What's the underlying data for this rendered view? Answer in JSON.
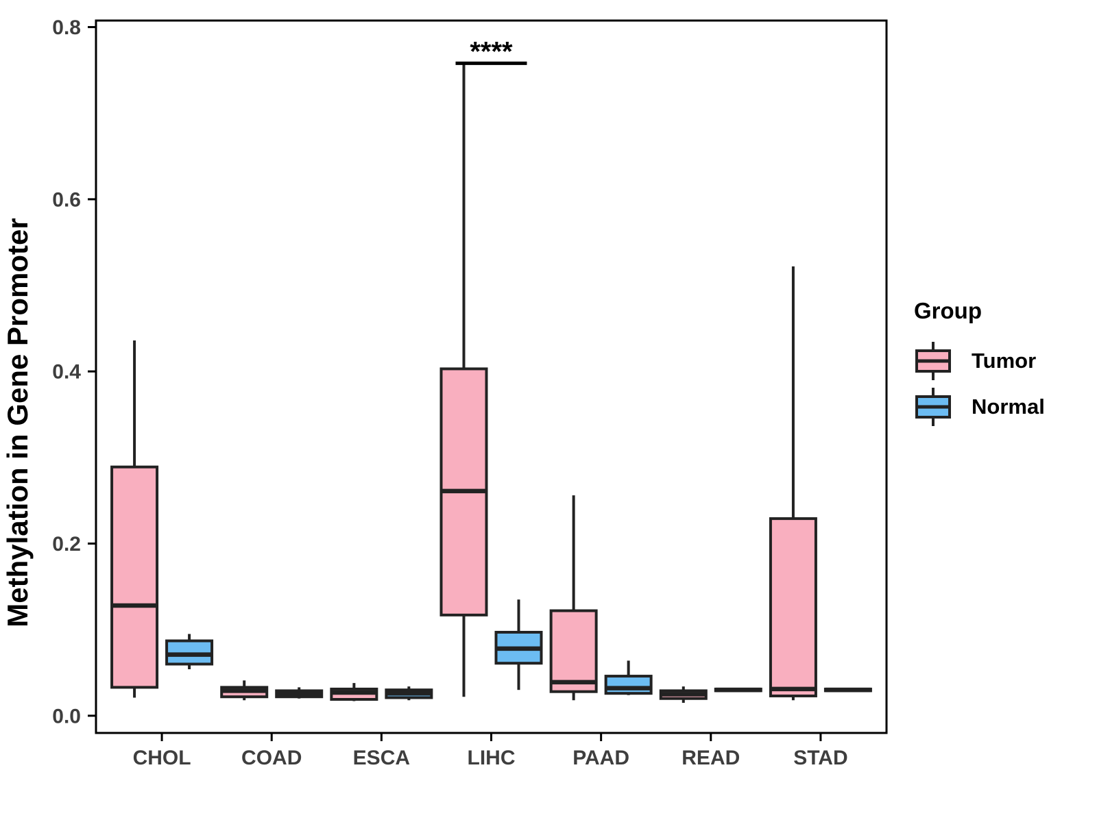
{
  "style": {
    "background": "#FFFFFF",
    "axis_color": "#000000",
    "box_border": "#222222",
    "tick_label_color": "#3E3E3E"
  },
  "legend": {
    "title": "Group"
  },
  "chart_data": {
    "type": "boxplot",
    "title": "",
    "xlabel": "",
    "ylabel": "Methylation in Gene Promoter",
    "grid": "off",
    "legend_position": "right",
    "categories": [
      "CHOL",
      "COAD",
      "ESCA",
      "LIHC",
      "PAAD",
      "READ",
      "STAD"
    ],
    "y_ticks": [
      0.0,
      0.2,
      0.4,
      0.6,
      0.8
    ],
    "y_tick_labels": [
      "0.0",
      "0.2",
      "0.4",
      "0.6",
      "0.8"
    ],
    "ylim": [
      -0.02,
      0.8076
    ],
    "groups": [
      {
        "name": "Tumor",
        "fill": "#F9AFBF"
      },
      {
        "name": "Normal",
        "fill": "#6CBCF2"
      }
    ],
    "series": [
      {
        "name": "Tumor",
        "stats": [
          {
            "category": "CHOL",
            "min": 0.021,
            "q1": 0.033,
            "median": 0.128,
            "q3": 0.289,
            "max": 0.436
          },
          {
            "category": "COAD",
            "min": 0.018,
            "q1": 0.022,
            "median": 0.029,
            "q3": 0.033,
            "max": 0.041
          },
          {
            "category": "ESCA",
            "min": 0.017,
            "q1": 0.019,
            "median": 0.027,
            "q3": 0.031,
            "max": 0.038
          },
          {
            "category": "LIHC",
            "min": 0.022,
            "q1": 0.117,
            "median": 0.261,
            "q3": 0.403,
            "max": 0.757
          },
          {
            "category": "PAAD",
            "min": 0.018,
            "q1": 0.028,
            "median": 0.039,
            "q3": 0.122,
            "max": 0.256
          },
          {
            "category": "READ",
            "min": 0.015,
            "q1": 0.02,
            "median": 0.025,
            "q3": 0.029,
            "max": 0.034
          },
          {
            "category": "STAD",
            "min": 0.018,
            "q1": 0.023,
            "median": 0.031,
            "q3": 0.229,
            "max": 0.522
          }
        ]
      },
      {
        "name": "Normal",
        "stats": [
          {
            "category": "CHOL",
            "min": 0.054,
            "q1": 0.06,
            "median": 0.071,
            "q3": 0.087,
            "max": 0.095
          },
          {
            "category": "COAD",
            "min": 0.02,
            "q1": 0.022,
            "median": 0.026,
            "q3": 0.029,
            "max": 0.033
          },
          {
            "category": "ESCA",
            "min": 0.018,
            "q1": 0.021,
            "median": 0.026,
            "q3": 0.03,
            "max": 0.034
          },
          {
            "category": "LIHC",
            "min": 0.03,
            "q1": 0.061,
            "median": 0.078,
            "q3": 0.097,
            "max": 0.135
          },
          {
            "category": "PAAD",
            "min": 0.024,
            "q1": 0.026,
            "median": 0.032,
            "q3": 0.046,
            "max": 0.064
          },
          {
            "category": "READ",
            "min": 0.028,
            "q1": 0.029,
            "median": 0.03,
            "q3": 0.031,
            "max": 0.032
          },
          {
            "category": "STAD",
            "min": 0.028,
            "q1": 0.029,
            "median": 0.03,
            "q3": 0.031,
            "max": 0.032
          }
        ]
      }
    ],
    "annotation": {
      "text": "****",
      "category": "LIHC",
      "bracket_y": 0.758
    }
  }
}
